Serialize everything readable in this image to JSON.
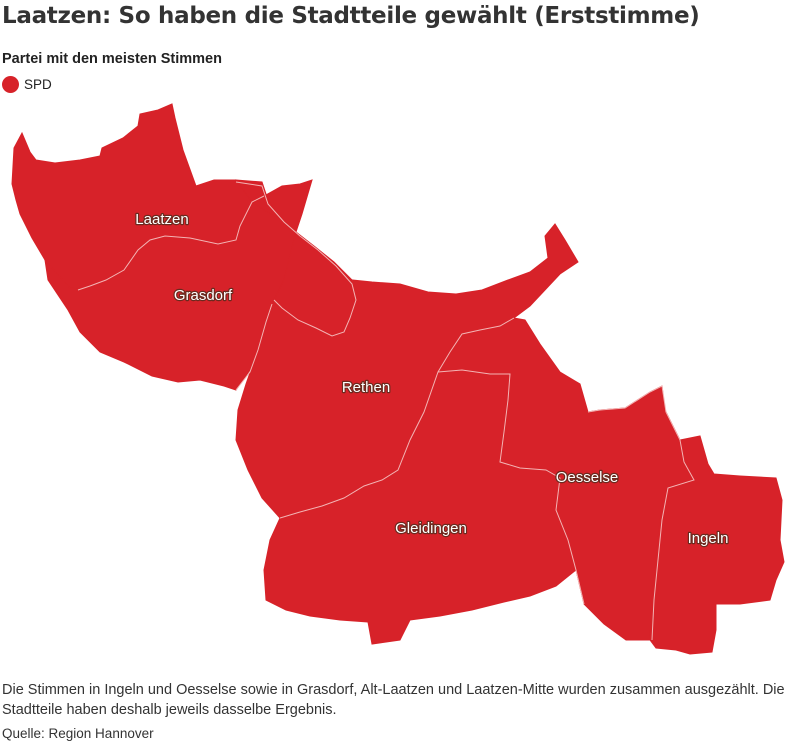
{
  "title": "Laatzen: So haben die Stadtteile gewählt (Erststimme)",
  "subtitle": "Partei mit den meisten Stimmen",
  "legend": [
    {
      "label": "SPD",
      "color": "#d72229"
    }
  ],
  "map": {
    "fill_color": "#d72229",
    "border_color": "#f3b4b4",
    "districts": [
      {
        "name": "Laatzen",
        "party": "SPD"
      },
      {
        "name": "Grasdorf",
        "party": "SPD"
      },
      {
        "name": "Rethen",
        "party": "SPD"
      },
      {
        "name": "Gleidingen",
        "party": "SPD"
      },
      {
        "name": "Oesselse",
        "party": "SPD"
      },
      {
        "name": "Ingeln",
        "party": "SPD"
      }
    ]
  },
  "footer": {
    "note": "Die Stimmen in Ingeln und Oesselse sowie in Grasdorf, Alt-Laatzen und Laatzen-Mitte wurden zusammen ausgezählt. Die Stadtteile haben deshalb jeweils dasselbe Ergebnis.",
    "source": "Quelle: Region Hannover"
  }
}
